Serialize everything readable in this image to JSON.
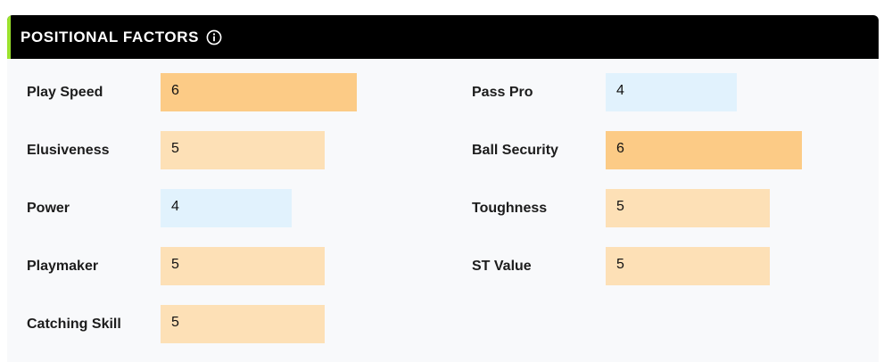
{
  "header": {
    "title": "POSITIONAL FACTORS",
    "info_icon": "info-circle-icon",
    "accent_color": "#9be22d"
  },
  "scale_max": 10,
  "colors": {
    "high": "#fccb86",
    "mid": "#fde0b6",
    "low": "#e1f2fd"
  },
  "factors_left": [
    {
      "label": "Play Speed",
      "value": 6,
      "level": "high"
    },
    {
      "label": "Elusiveness",
      "value": 5,
      "level": "mid"
    },
    {
      "label": "Power",
      "value": 4,
      "level": "low"
    },
    {
      "label": "Playmaker",
      "value": 5,
      "level": "mid"
    },
    {
      "label": "Catching Skill",
      "value": 5,
      "level": "mid"
    }
  ],
  "factors_right": [
    {
      "label": "Pass Pro",
      "value": 4,
      "level": "low"
    },
    {
      "label": "Ball Security",
      "value": 6,
      "level": "high"
    },
    {
      "label": "Toughness",
      "value": 5,
      "level": "mid"
    },
    {
      "label": "ST Value",
      "value": 5,
      "level": "mid"
    }
  ]
}
